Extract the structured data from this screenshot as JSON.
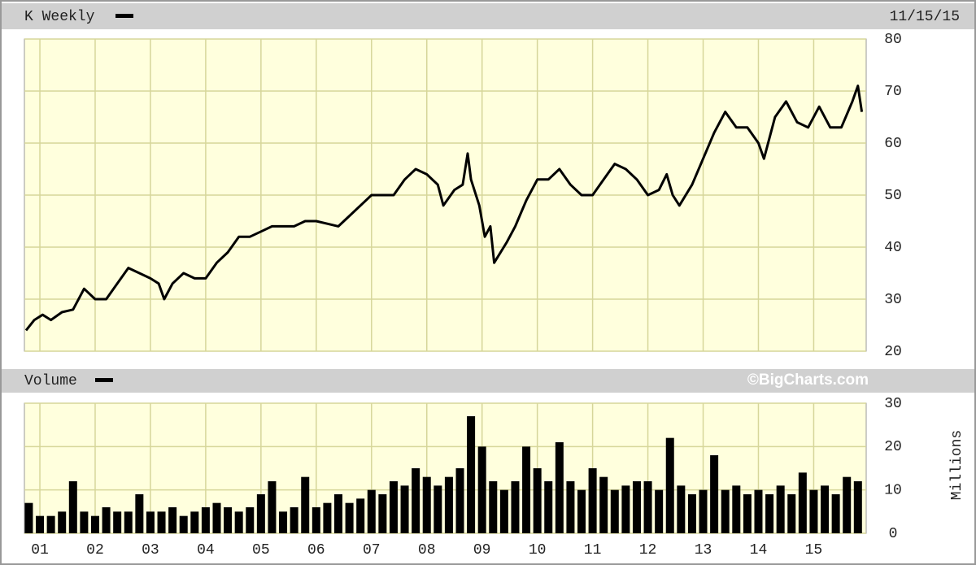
{
  "chart_data": [
    {
      "type": "line",
      "title": "K Weekly",
      "date": "11/15/15",
      "color": "#000000",
      "x": [
        0.75,
        0.9,
        1.05,
        1.2,
        1.4,
        1.6,
        1.8,
        2.0,
        2.2,
        2.4,
        2.6,
        2.8,
        3.0,
        3.15,
        3.25,
        3.4,
        3.6,
        3.8,
        4.0,
        4.2,
        4.4,
        4.6,
        4.8,
        5.0,
        5.2,
        5.4,
        5.6,
        5.8,
        6.0,
        6.2,
        6.4,
        6.6,
        6.8,
        7.0,
        7.2,
        7.4,
        7.6,
        7.8,
        8.0,
        8.2,
        8.3,
        8.5,
        8.65,
        8.74,
        8.8,
        8.95,
        9.05,
        9.15,
        9.22,
        9.45,
        9.6,
        9.8,
        10.0,
        10.2,
        10.4,
        10.6,
        10.8,
        11.0,
        11.2,
        11.4,
        11.6,
        11.8,
        12.0,
        12.2,
        12.34,
        12.45,
        12.57,
        12.8,
        13.0,
        13.2,
        13.4,
        13.6,
        13.8,
        14.0,
        14.1,
        14.3,
        14.5,
        14.7,
        14.9,
        15.1,
        15.3,
        15.5,
        15.7,
        15.8,
        15.87
      ],
      "values": [
        24,
        26,
        27,
        26,
        27.5,
        28,
        32,
        30,
        30,
        33,
        36,
        35,
        34,
        33,
        30,
        33,
        35,
        34,
        34,
        37,
        39,
        42,
        42,
        43,
        44,
        44,
        44,
        45,
        45,
        44.5,
        44,
        46,
        48,
        50,
        50,
        50,
        53,
        55,
        54,
        52,
        48,
        51,
        52,
        58,
        53,
        48,
        42,
        44,
        37,
        41,
        44,
        49,
        53,
        53,
        55,
        52,
        50,
        50,
        53,
        56,
        55,
        53,
        50,
        51,
        54,
        50,
        48,
        52,
        57,
        62,
        66,
        63,
        63,
        60,
        57,
        65,
        68,
        64,
        63,
        67,
        63,
        63,
        68,
        71,
        66
      ],
      "xlim": [
        0.72,
        15.95
      ],
      "ylim": [
        20,
        80
      ],
      "yticks": [
        20,
        30,
        40,
        50,
        60,
        70,
        80
      ],
      "xticks": [
        1,
        2,
        3,
        4,
        5,
        6,
        7,
        8,
        9,
        10,
        11,
        12,
        13,
        14,
        15
      ],
      "grid": true
    },
    {
      "type": "bar",
      "title": "Volume",
      "source": "©BigCharts.com",
      "y_label": "Millions",
      "color": "#000000",
      "x": [
        0.8,
        1.0,
        1.2,
        1.4,
        1.6,
        1.8,
        2.0,
        2.2,
        2.4,
        2.6,
        2.8,
        3.0,
        3.2,
        3.4,
        3.6,
        3.8,
        4.0,
        4.2,
        4.4,
        4.6,
        4.8,
        5.0,
        5.2,
        5.4,
        5.6,
        5.8,
        6.0,
        6.2,
        6.4,
        6.6,
        6.8,
        7.0,
        7.2,
        7.4,
        7.6,
        7.8,
        8.0,
        8.2,
        8.4,
        8.6,
        8.8,
        9.0,
        9.2,
        9.4,
        9.6,
        9.8,
        10.0,
        10.2,
        10.4,
        10.6,
        10.8,
        11.0,
        11.2,
        11.4,
        11.6,
        11.8,
        12.0,
        12.2,
        12.4,
        12.6,
        12.8,
        13.0,
        13.2,
        13.4,
        13.6,
        13.8,
        14.0,
        14.2,
        14.4,
        14.6,
        14.8,
        15.0,
        15.2,
        15.4,
        15.6,
        15.8
      ],
      "values": [
        7,
        4,
        4,
        5,
        12,
        5,
        4,
        6,
        5,
        5,
        9,
        5,
        5,
        6,
        4,
        5,
        6,
        7,
        6,
        5,
        6,
        9,
        12,
        5,
        6,
        13,
        6,
        7,
        9,
        7,
        8,
        10,
        9,
        12,
        11,
        15,
        13,
        11,
        13,
        15,
        27,
        20,
        12,
        10,
        12,
        20,
        15,
        12,
        21,
        12,
        10,
        15,
        13,
        10,
        11,
        12,
        12,
        10,
        22,
        11,
        9,
        10,
        18,
        10,
        11,
        9,
        10,
        9,
        11,
        9,
        14,
        10,
        11,
        9,
        13,
        12
      ],
      "xlim": [
        0.72,
        15.95
      ],
      "ylim": [
        0,
        30
      ],
      "yticks": [
        0,
        10,
        20,
        30
      ],
      "xticks": [
        {
          "value": 1,
          "label": "01"
        },
        {
          "value": 2,
          "label": "02"
        },
        {
          "value": 3,
          "label": "03"
        },
        {
          "value": 4,
          "label": "04"
        },
        {
          "value": 5,
          "label": "05"
        },
        {
          "value": 6,
          "label": "06"
        },
        {
          "value": 7,
          "label": "07"
        },
        {
          "value": 8,
          "label": "08"
        },
        {
          "value": 9,
          "label": "09"
        },
        {
          "value": 10,
          "label": "10"
        },
        {
          "value": 11,
          "label": "11"
        },
        {
          "value": 12,
          "label": "12"
        },
        {
          "value": 13,
          "label": "13"
        },
        {
          "value": 14,
          "label": "14"
        },
        {
          "value": 15,
          "label": "15"
        }
      ],
      "grid": true
    }
  ]
}
